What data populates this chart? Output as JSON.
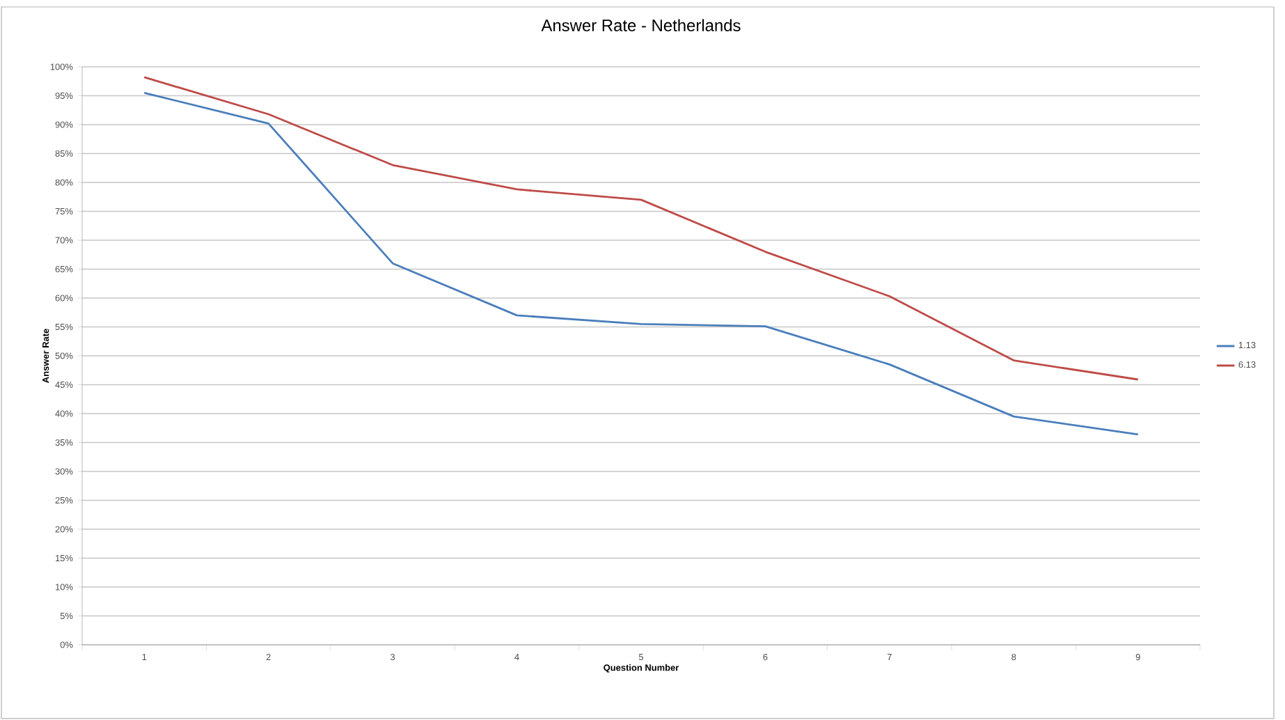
{
  "chart_data": {
    "type": "line",
    "title": "Answer Rate - Netherlands",
    "xlabel": "Question Number",
    "ylabel": "Answer Rate",
    "categories": [
      "1",
      "2",
      "3",
      "4",
      "5",
      "6",
      "7",
      "8",
      "9"
    ],
    "series": [
      {
        "name": "1.13",
        "color": "#4a7ebb",
        "values": [
          95.5,
          90.2,
          66.0,
          57.0,
          55.5,
          55.1,
          48.5,
          39.5,
          36.4
        ]
      },
      {
        "name": "6.13",
        "color": "#be4b48",
        "values": [
          98.2,
          91.8,
          83.0,
          78.8,
          77.0,
          68.0,
          60.3,
          49.2,
          45.9
        ]
      }
    ],
    "ylim": [
      0,
      100
    ],
    "yticks": [
      {
        "value": 0,
        "label": "0%"
      },
      {
        "value": 5,
        "label": "5%"
      },
      {
        "value": 10,
        "label": "10%"
      },
      {
        "value": 15,
        "label": "15%"
      },
      {
        "value": 20,
        "label": "20%"
      },
      {
        "value": 25,
        "label": "25%"
      },
      {
        "value": 30,
        "label": "30%"
      },
      {
        "value": 35,
        "label": "35%"
      },
      {
        "value": 40,
        "label": "40%"
      },
      {
        "value": 45,
        "label": "45%"
      },
      {
        "value": 50,
        "label": "50%"
      },
      {
        "value": 55,
        "label": "55%"
      },
      {
        "value": 60,
        "label": "60%"
      },
      {
        "value": 65,
        "label": "65%"
      },
      {
        "value": 70,
        "label": "70%"
      },
      {
        "value": 75,
        "label": "75%"
      },
      {
        "value": 80,
        "label": "80%"
      },
      {
        "value": 85,
        "label": "85%"
      },
      {
        "value": 90,
        "label": "90%"
      },
      {
        "value": 95,
        "label": "95%"
      },
      {
        "value": 100,
        "label": "100%"
      }
    ],
    "grid": "y",
    "legend": "right",
    "marker": "none",
    "line_style": "solid"
  }
}
